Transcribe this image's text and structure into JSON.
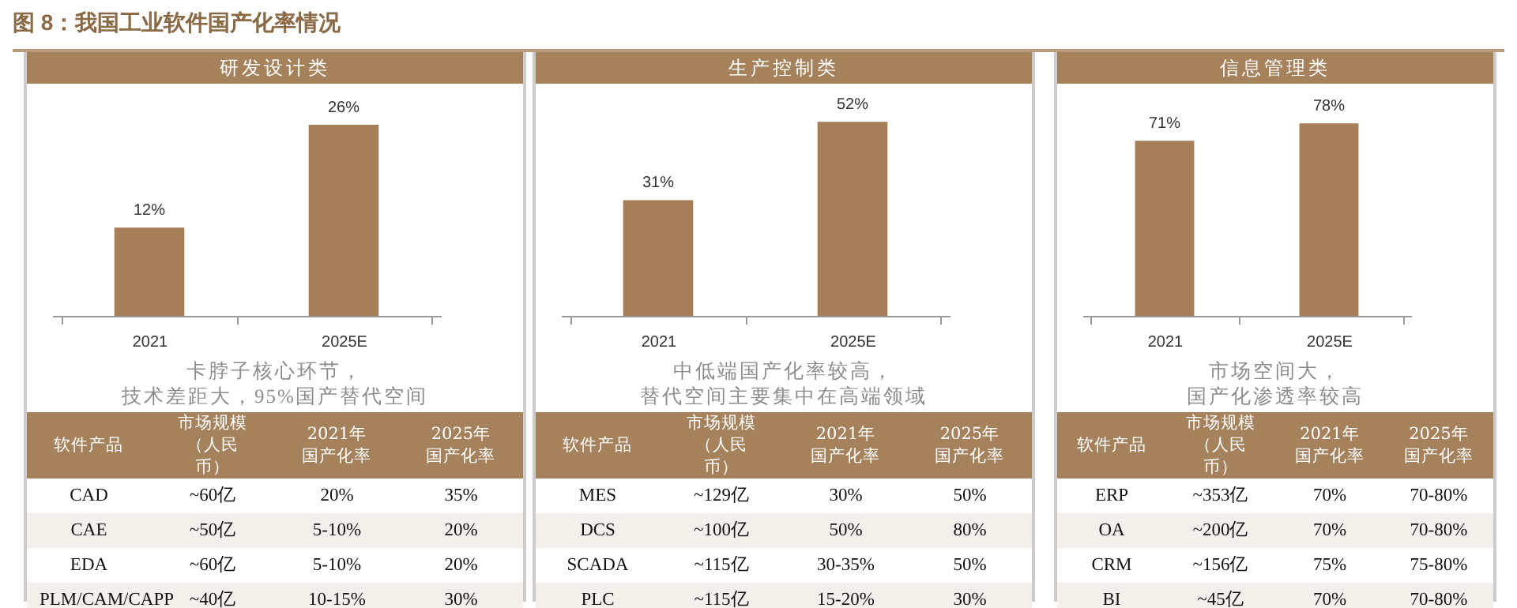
{
  "chart_data": [
    {
      "type": "other",
      "title": "图 8：我国工业软件国产化率情况"
    },
    {
      "type": "bar",
      "title": "研发设计类",
      "categories": [
        "2021",
        "2025E"
      ],
      "values": [
        12,
        26
      ],
      "value_labels": [
        "12%",
        "26%"
      ],
      "color": "#a67f59",
      "annotations": [
        "卡脖子核心环节，",
        "技术差距大，95%国产替代空间",
        "软件产品",
        "市场规模（人民币）",
        "2021年国产化率",
        "2025年国产化率",
        "CAD",
        "~60亿",
        "20%",
        "35%",
        "CAE",
        "~50亿",
        "5-10%",
        "20%",
        "EDA",
        "~60亿",
        "5-10%",
        "20%",
        "PLM/CAM/CAPP",
        "~40亿",
        "10-15%",
        "30%"
      ]
    },
    {
      "type": "bar",
      "title": "生产控制类",
      "categories": [
        "2021",
        "2025E"
      ],
      "values": [
        31,
        52
      ],
      "value_labels": [
        "31%",
        "52%"
      ],
      "color": "#a67f59",
      "annotations": [
        "中低端国产化率较高，",
        "替代空间主要集中在高端领域",
        "软件产品",
        "市场规模（人民币）",
        "2021年国产化率",
        "2025年国产化率",
        "MES",
        "~129亿",
        "30%",
        "50%",
        "DCS",
        "~100亿",
        "50%",
        "80%",
        "SCADA",
        "~115亿",
        "30-35%",
        "50%",
        "PLC",
        "~115亿",
        "15-20%",
        "30%"
      ]
    },
    {
      "type": "bar",
      "title": "信息管理类",
      "categories": [
        "2021",
        "2025E"
      ],
      "values": [
        71,
        78
      ],
      "value_labels": [
        "71%",
        "78%"
      ],
      "color": "#a67f59",
      "annotations": [
        "市场空间大，",
        "国产化渗透率较高",
        "软件产品",
        "市场规模（人民币）",
        "2021年国产化率",
        "2025年国产化率",
        "ERP",
        "~353亿",
        "70%",
        "70-80%",
        "OA",
        "~200亿",
        "70%",
        "70-80%",
        "CRM",
        "~156亿",
        "75%",
        "75-80%",
        "BI",
        "~45亿",
        "70%",
        "70-80%"
      ]
    }
  ]
}
